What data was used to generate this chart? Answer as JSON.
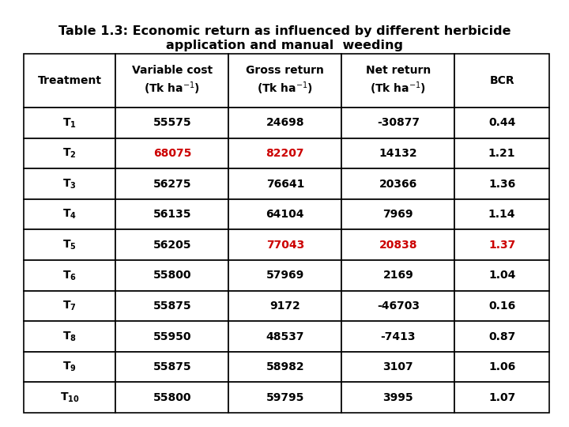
{
  "title_line1": "Table 1.3: Economic return as influenced by different herbicide",
  "title_line2": "application and manual  weeding",
  "treatments": [
    "T_1",
    "T_2",
    "T_3",
    "T_4",
    "T_5",
    "T_6",
    "T_7",
    "T_8",
    "T_9",
    "T_{10}"
  ],
  "variable_cost": [
    "55575",
    "68075",
    "56275",
    "56135",
    "56205",
    "55800",
    "55875",
    "55950",
    "55875",
    "55800"
  ],
  "gross_return": [
    "24698",
    "82207",
    "76641",
    "64104",
    "77043",
    "57969",
    "9172",
    "48537",
    "58982",
    "59795"
  ],
  "net_return": [
    "-30877",
    "14132",
    "20366",
    "7969",
    "20838",
    "2169",
    "-46703",
    "-7413",
    "3107",
    "3995"
  ],
  "bcr": [
    "0.44",
    "1.21",
    "1.36",
    "1.14",
    "1.37",
    "1.04",
    "0.16",
    "0.87",
    "1.06",
    "1.07"
  ],
  "red_cells": {
    "1": [
      1,
      2
    ],
    "4": [
      2,
      3,
      4
    ]
  },
  "bg_color": "#ffffff",
  "text_color": "#000000",
  "red_color": "#cc0000",
  "border_color": "#000000",
  "title_fontsize": 11.5,
  "header_fontsize": 10,
  "cell_fontsize": 10
}
